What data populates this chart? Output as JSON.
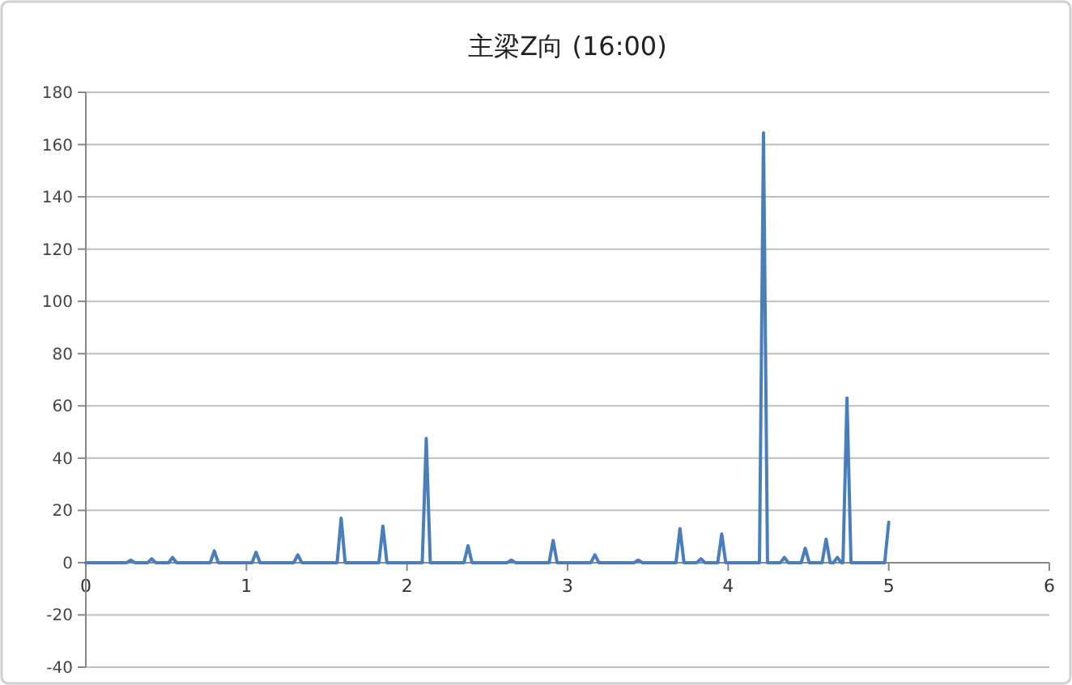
{
  "chart_data": {
    "type": "line",
    "title": "主梁Z向 (16:00)",
    "x": [
      0,
      0.255,
      0.28,
      0.305,
      0.385,
      0.41,
      0.435,
      0.515,
      0.54,
      0.565,
      0.775,
      0.8,
      0.825,
      1.035,
      1.06,
      1.085,
      1.295,
      1.32,
      1.345,
      1.565,
      1.59,
      1.615,
      1.825,
      1.85,
      1.875,
      2.095,
      2.12,
      2.145,
      2.355,
      2.38,
      2.405,
      2.625,
      2.65,
      2.675,
      2.885,
      2.91,
      2.935,
      3.145,
      3.17,
      3.195,
      3.415,
      3.44,
      3.465,
      3.675,
      3.7,
      3.725,
      3.805,
      3.83,
      3.855,
      3.935,
      3.96,
      3.985,
      4.195,
      4.22,
      4.245,
      4.325,
      4.35,
      4.375,
      4.455,
      4.48,
      4.505,
      4.585,
      4.61,
      4.635,
      4.655,
      4.68,
      4.705,
      4.715,
      4.74,
      4.765,
      4.975,
      5.0
    ],
    "series": [
      {
        "color": "#4a7ebb",
        "values": [
          0,
          0,
          1,
          0,
          0,
          1.5,
          0,
          0,
          2,
          0,
          0,
          4.5,
          0,
          0,
          4,
          0,
          0,
          3,
          0,
          0,
          17,
          0,
          0,
          14,
          0,
          0,
          47.5,
          0,
          0,
          6.5,
          0,
          0,
          1,
          0,
          0,
          8.5,
          0,
          0,
          3,
          0,
          0,
          1,
          0,
          0,
          13,
          0,
          0,
          1.5,
          0,
          0,
          11,
          0,
          0,
          164.5,
          0,
          0,
          2,
          0,
          0,
          5.5,
          0,
          0,
          9,
          0,
          0,
          2,
          0,
          0,
          63,
          0,
          0,
          15.5
        ]
      }
    ],
    "xlim": [
      0,
      6
    ],
    "ylim": [
      -40,
      180
    ],
    "xticks": [
      0,
      1,
      2,
      3,
      4,
      5,
      6
    ],
    "yticks": [
      -40,
      -20,
      0,
      20,
      40,
      60,
      80,
      100,
      120,
      140,
      160,
      180
    ],
    "grid": "y"
  }
}
